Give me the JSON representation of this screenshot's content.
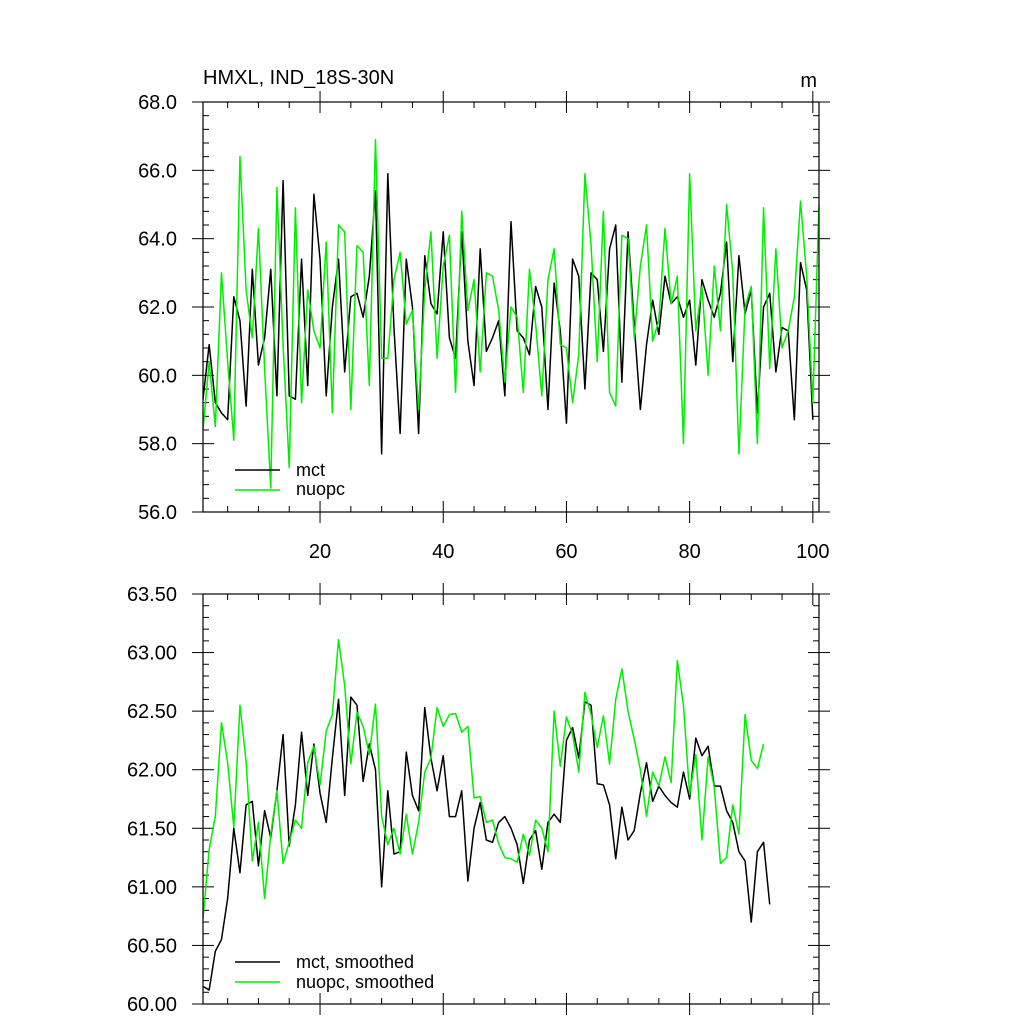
{
  "chart_data": [
    {
      "type": "line",
      "title": "HMXL, IND_18S-30N",
      "units": "m",
      "xlim": [
        1,
        101
      ],
      "ylim": [
        56.0,
        68.0
      ],
      "x_ticks": [
        20,
        40,
        60,
        80,
        100
      ],
      "y_ticks": [
        56.0,
        58.0,
        60.0,
        62.0,
        64.0,
        66.0,
        68.0
      ],
      "y_tick_labels": [
        "56.0",
        "58.0",
        "60.0",
        "62.0",
        "64.0",
        "66.0",
        "68.0"
      ],
      "legend_position": "bottom-left",
      "series": [
        {
          "name": "mct",
          "color": "#000000",
          "values": [
            59.3,
            60.9,
            59.2,
            58.9,
            58.7,
            62.3,
            61.6,
            59.1,
            63.1,
            60.3,
            61.1,
            63.1,
            59.4,
            65.7,
            59.4,
            59.3,
            63.4,
            59.7,
            65.3,
            63.4,
            59.4,
            62.0,
            63.4,
            60.1,
            62.3,
            62.4,
            61.7,
            62.9,
            65.4,
            57.7,
            65.9,
            61.4,
            58.3,
            63.4,
            62.0,
            58.3,
            63.5,
            62.1,
            61.8,
            64.2,
            61.1,
            60.5,
            64.2,
            61.0,
            59.7,
            63.7,
            60.7,
            61.1,
            61.6,
            59.4,
            64.5,
            61.3,
            61.1,
            60.6,
            62.6,
            62.0,
            59.0,
            62.7,
            61.3,
            58.6,
            63.4,
            62.9,
            59.6,
            63.0,
            62.8,
            60.7,
            63.7,
            64.4,
            59.8,
            64.2,
            61.5,
            59.0,
            60.9,
            62.2,
            61.2,
            62.9,
            62.1,
            62.3,
            61.7,
            62.2,
            60.3,
            62.8,
            62.2,
            61.7,
            62.4,
            63.9,
            60.4,
            63.5,
            61.8,
            62.5,
            58.9,
            62.0,
            62.4,
            60.1,
            61.4,
            61.3,
            58.7,
            63.3,
            62.5,
            58.7
          ]
        },
        {
          "name": "nuopc",
          "color": "#00ee00",
          "values": [
            58.4,
            60.4,
            58.5,
            63.0,
            60.4,
            58.1,
            66.4,
            62.5,
            61.1,
            64.3,
            60.2,
            56.7,
            65.5,
            60.9,
            57.3,
            64.9,
            59.2,
            62.5,
            61.3,
            60.8,
            63.9,
            58.9,
            64.4,
            64.2,
            59.0,
            63.8,
            63.6,
            59.7,
            66.9,
            60.5,
            60.5,
            62.8,
            63.6,
            61.5,
            61.9,
            59.0,
            62.5,
            64.2,
            60.5,
            63.2,
            64.1,
            59.5,
            64.8,
            61.9,
            62.8,
            60.1,
            63.0,
            62.9,
            61.9,
            59.8,
            62.0,
            61.7,
            59.5,
            63.1,
            61.5,
            59.4,
            62.8,
            63.7,
            60.9,
            60.8,
            59.2,
            60.6,
            65.9,
            63.8,
            60.4,
            64.8,
            59.5,
            59.1,
            64.1,
            64.0,
            61.1,
            63.2,
            64.4,
            61.0,
            61.6,
            64.3,
            62.1,
            62.9,
            58.0,
            65.9,
            61.3,
            62.6,
            60.0,
            63.2,
            61.3,
            65.0,
            63.0,
            57.7,
            62.0,
            62.6,
            58.0,
            64.9,
            60.2,
            63.7,
            60.8,
            61.3,
            62.3,
            65.1,
            62.9,
            59.2,
            65.0
          ]
        }
      ]
    },
    {
      "type": "line",
      "xlim": [
        1,
        101
      ],
      "ylim": [
        60.0,
        63.5
      ],
      "y_ticks": [
        60.0,
        60.5,
        61.0,
        61.5,
        62.0,
        62.5,
        63.0,
        63.5
      ],
      "y_tick_labels": [
        "60.00",
        "60.50",
        "61.00",
        "61.50",
        "62.00",
        "62.50",
        "63.00",
        "63.50"
      ],
      "legend_position": "bottom-left",
      "series": [
        {
          "name": "mct, smoothed",
          "color": "#000000",
          "values": [
            60.15,
            60.12,
            60.45,
            60.55,
            60.9,
            61.5,
            61.12,
            61.7,
            61.73,
            61.18,
            61.65,
            61.42,
            61.82,
            62.3,
            61.35,
            61.7,
            62.32,
            61.78,
            62.22,
            61.8,
            61.55,
            62.1,
            62.6,
            61.78,
            62.62,
            62.55,
            61.9,
            62.22,
            62.0,
            61.0,
            61.82,
            61.28,
            61.3,
            62.15,
            61.78,
            61.65,
            62.53,
            62.1,
            61.82,
            62.12,
            61.6,
            61.6,
            61.82,
            61.05,
            61.5,
            61.72,
            61.4,
            61.38,
            61.55,
            61.6,
            61.5,
            61.36,
            61.03,
            61.4,
            61.48,
            61.15,
            61.55,
            61.62,
            61.55,
            62.25,
            62.36,
            62.1,
            62.58,
            62.55,
            61.88,
            61.87,
            61.7,
            61.24,
            61.68,
            61.4,
            61.48,
            61.8,
            62.06,
            61.73,
            61.86,
            61.78,
            61.72,
            61.68,
            61.98,
            61.75,
            62.27,
            62.12,
            62.2,
            61.86,
            61.86,
            61.65,
            61.55,
            61.3,
            61.22,
            60.7,
            61.3,
            61.38,
            60.85
          ]
        },
        {
          "name": "nuopc, smoothed",
          "color": "#00ee00",
          "values": [
            60.73,
            61.32,
            61.6,
            62.4,
            62.06,
            61.51,
            62.55,
            62.07,
            61.22,
            61.55,
            60.9,
            61.45,
            61.82,
            61.2,
            61.38,
            61.57,
            61.5,
            62.06,
            62.2,
            61.87,
            62.33,
            62.47,
            63.11,
            62.72,
            62.05,
            62.49,
            62.37,
            62.13,
            62.56,
            61.6,
            61.36,
            61.5,
            61.28,
            61.62,
            61.28,
            61.55,
            61.98,
            62.1,
            62.53,
            62.37,
            62.47,
            62.48,
            62.32,
            62.37,
            61.76,
            61.77,
            61.55,
            61.57,
            61.37,
            61.25,
            61.24,
            61.21,
            61.45,
            61.27,
            61.57,
            61.5,
            61.3,
            62.5,
            62.03,
            62.45,
            62.3,
            61.98,
            62.66,
            62.47,
            62.19,
            62.46,
            62.05,
            62.6,
            62.86,
            62.5,
            62.26,
            62.0,
            61.6,
            61.98,
            61.86,
            62.11,
            61.89,
            62.93,
            62.55,
            61.79,
            62.13,
            61.4,
            62.11,
            61.85,
            61.2,
            61.25,
            61.7,
            61.45,
            62.47,
            62.08,
            62.01,
            62.22
          ]
        }
      ]
    }
  ]
}
